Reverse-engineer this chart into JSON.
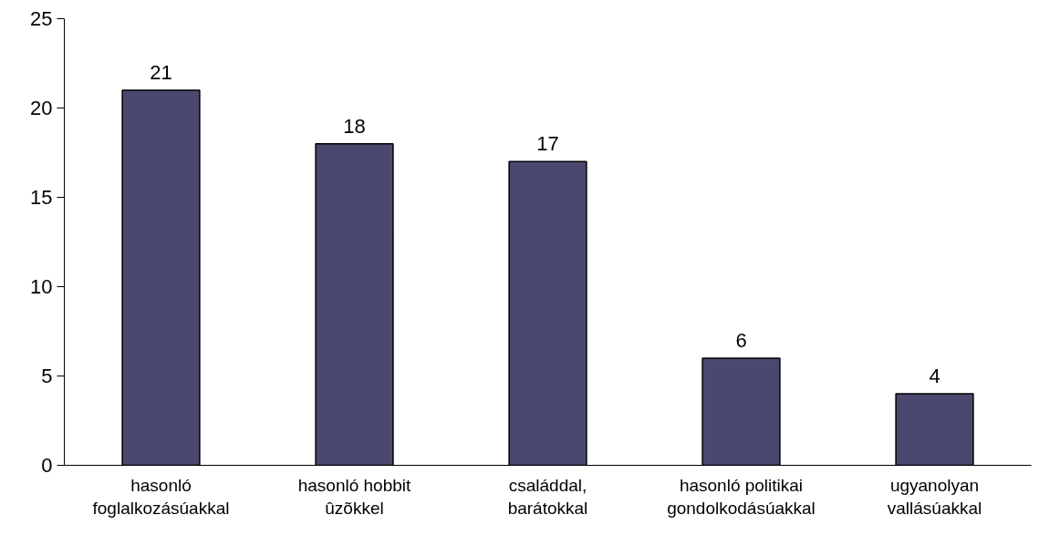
{
  "chart_data": {
    "type": "bar",
    "categories": [
      "hasonló\nfoglalkozásúakkal",
      "hasonló hobbit\nûzõkkel",
      "családdal,\nbarátokkal",
      "hasonló politikai\ngondolkodásúakkal",
      "ugyanolyan\nvallásúakkal"
    ],
    "values": [
      21,
      18,
      17,
      6,
      4
    ],
    "color": "#4b4870",
    "ylim": [
      0,
      25
    ],
    "yticks": [
      0,
      5,
      10,
      15,
      20,
      25
    ],
    "data_labels": true,
    "grid": false
  }
}
